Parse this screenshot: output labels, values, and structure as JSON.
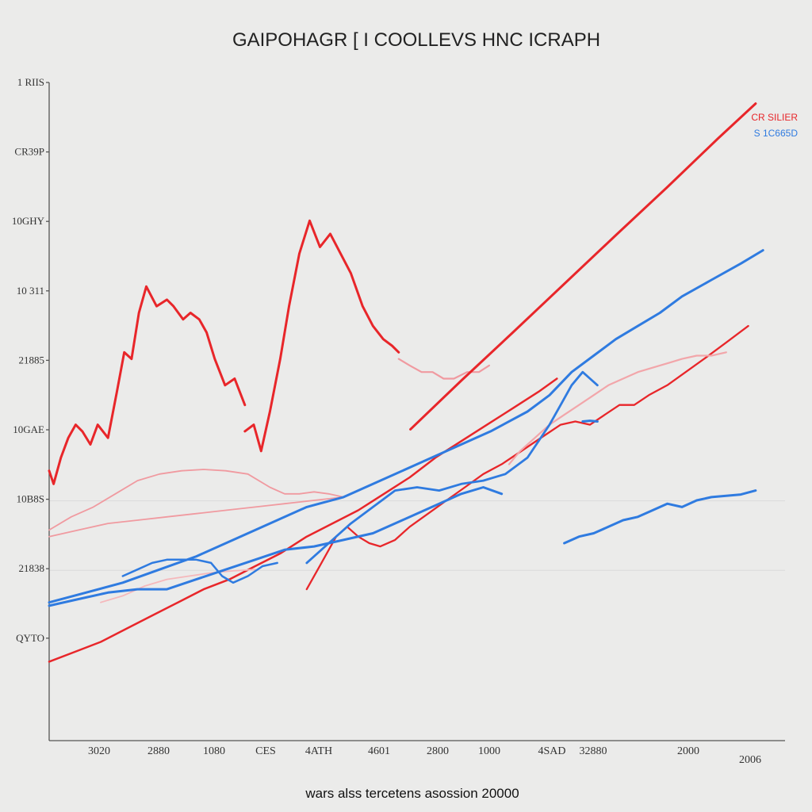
{
  "chart_data": {
    "type": "line",
    "title": "GAIPOHAGR  [ I COOLLEVS HNC  ICRAPH",
    "xlabel": "wars alss tercetens asossion 20000",
    "ylabel": "",
    "y_tick_labels": [
      "1 RIIS",
      "CR39P",
      "10GHY",
      "10 311",
      "21885",
      "10GAE",
      "10B8S",
      "21838",
      "QYTO"
    ],
    "x_tick_labels": [
      "3020",
      "2880",
      "1080",
      "CES",
      "4ATH",
      "4601",
      "2800",
      "1000",
      "4SAD",
      "32880",
      "2000",
      "2006"
    ],
    "xlim": [
      0,
      100
    ],
    "ylim": [
      0,
      100
    ],
    "grid": true,
    "legend_position": "top-right",
    "legend": [
      {
        "label": "CR SILIER",
        "color": "#e8262a"
      },
      {
        "label": "S 1C665D",
        "color": "#2f7be0"
      }
    ],
    "series": [
      {
        "color": "#e8262a",
        "width": 3,
        "opacity": 1,
        "x": [
          0,
          0.6,
          1.6,
          2.6,
          3.6,
          4.5,
          5.6,
          6.6,
          8.0,
          9.2,
          10.2,
          11.2,
          12.2,
          13.2,
          14.6,
          16.0,
          16.9,
          18.2,
          19.2,
          20.4,
          21.4,
          22.5,
          23.9,
          25.2,
          26.6
        ],
        "y": [
          41,
          39,
          43,
          46,
          48,
          47,
          45,
          48,
          46,
          53,
          59,
          58,
          65,
          69,
          66,
          67,
          66,
          64,
          65,
          64,
          62,
          58,
          54,
          55,
          51
        ]
      },
      {
        "color": "#e8262a",
        "width": 3,
        "opacity": 1,
        "x": [
          26.6,
          27.8,
          28.8,
          30.0,
          31.4,
          32.6,
          34.0,
          35.4,
          36.8,
          38.2,
          39.6,
          41.0,
          42.6,
          44.0,
          45.4,
          46.6,
          47.5
        ],
        "y": [
          47,
          48,
          44,
          50,
          58,
          66,
          74,
          79,
          75,
          77,
          74,
          71,
          66,
          63,
          61,
          60,
          59
        ]
      },
      {
        "color": "#f09aa0",
        "width": 2.2,
        "opacity": 1,
        "x": [
          47.5,
          49.0,
          50.6,
          52.1,
          53.6,
          55.0,
          56.8,
          58.4,
          59.8
        ],
        "y": [
          58,
          57,
          56,
          56,
          55,
          55,
          56,
          56,
          57
        ]
      },
      {
        "color": "#e8262a",
        "width": 3,
        "opacity": 1,
        "x": [
          49.1,
          56.0,
          63.0,
          70.0,
          77.0,
          84.0,
          90.9,
          96.0
        ],
        "y": [
          47.3,
          54.7,
          62.0,
          69.4,
          76.8,
          84.1,
          91.5,
          96.8
        ]
      },
      {
        "color": "#e8262a",
        "width": 2.5,
        "opacity": 1,
        "x": [
          0,
          3.5,
          7.0,
          10.5,
          14.0,
          17.5,
          21.0,
          24.5,
          28.0,
          31.5,
          35.0,
          38.5,
          42.0,
          45.5,
          49.0,
          52.5,
          56.0,
          59.5,
          63.0,
          66.5,
          69.0
        ],
        "y": [
          12,
          13.5,
          15,
          17,
          19,
          21,
          23,
          24.5,
          26.5,
          28.5,
          31,
          33,
          35,
          37.5,
          40,
          43,
          45.5,
          48,
          50.5,
          53,
          55
        ]
      },
      {
        "color": "#e8262a",
        "width": 2.3,
        "opacity": 1,
        "x": [
          35,
          37,
          39,
          40.5,
          42,
          43.5,
          45,
          47,
          49,
          51.5,
          54,
          56.5,
          59,
          61.5,
          63.5,
          65.5,
          67.5,
          69.5,
          71.5,
          73.5,
          75.5,
          77.5,
          79.5,
          81.5,
          84,
          86.5,
          89,
          92,
          95
        ],
        "y": [
          23,
          27,
          31,
          32.5,
          31,
          30,
          29.5,
          30.5,
          32.5,
          34.5,
          36.5,
          38.5,
          40.5,
          42,
          43.5,
          45,
          46.5,
          48,
          48.5,
          48,
          49.5,
          51,
          51,
          52.5,
          54,
          56,
          58,
          60.5,
          63
        ]
      },
      {
        "color": "#f2a6aa",
        "width": 2.2,
        "opacity": 1,
        "x": [
          62.5,
          64,
          66,
          68,
          70,
          72,
          74,
          76,
          78,
          80,
          81.5,
          83,
          84.5,
          86,
          88,
          90,
          92
        ],
        "y": [
          42,
          44,
          46,
          48,
          49.5,
          51,
          52.5,
          54,
          55,
          56,
          56.5,
          57,
          57.5,
          58,
          58.5,
          58.5,
          59
        ]
      },
      {
        "color": "#f09aa0",
        "width": 1.8,
        "opacity": 1,
        "x": [
          0,
          3,
          6,
          9,
          12,
          15,
          18,
          21,
          24,
          27,
          30,
          32,
          34,
          36,
          38,
          40
        ],
        "y": [
          32,
          34,
          35.5,
          37.5,
          39.5,
          40.5,
          41,
          41.2,
          41,
          40.5,
          38.5,
          37.5,
          37.5,
          37.8,
          37.5,
          37
        ]
      },
      {
        "color": "#f09aa0",
        "width": 1.8,
        "opacity": 1,
        "x": [
          0,
          4,
          8,
          12,
          16,
          20,
          24,
          28,
          32,
          36,
          40
        ],
        "y": [
          31,
          32,
          33,
          33.5,
          34,
          34.5,
          35,
          35.5,
          36,
          36.5,
          37
        ]
      },
      {
        "color": "#f5b8bb",
        "width": 1.8,
        "opacity": 1,
        "x": [
          7,
          10,
          13,
          16,
          19,
          22,
          25,
          28
        ],
        "y": [
          21,
          22,
          23.5,
          24.5,
          25,
          25.5,
          25.8,
          26
        ]
      },
      {
        "color": "#2f7be0",
        "width": 3,
        "opacity": 1,
        "x": [
          0,
          5,
          10,
          15,
          20,
          25,
          30,
          35,
          40,
          45,
          50,
          55,
          60,
          65,
          68,
          71,
          74,
          77,
          80,
          83,
          86,
          90,
          94,
          97
        ],
        "y": [
          21,
          22.5,
          24,
          26,
          28,
          30.5,
          33,
          35.5,
          37,
          39.5,
          42,
          44.5,
          47,
          50,
          52.5,
          56,
          58.5,
          61,
          63,
          65,
          67.5,
          70,
          72.5,
          74.5
        ]
      },
      {
        "color": "#2f7be0",
        "width": 3,
        "opacity": 1,
        "x": [
          0,
          4,
          8,
          12,
          16,
          20,
          24,
          28,
          32,
          36,
          40,
          44,
          48,
          52,
          56,
          59,
          61.5
        ],
        "y": [
          20.5,
          21.5,
          22.5,
          23,
          23,
          24.5,
          26,
          27.5,
          29,
          29.5,
          30.5,
          31.5,
          33.5,
          35.5,
          37.5,
          38.5,
          37.5
        ]
      },
      {
        "color": "#2f7be0",
        "width": 2.5,
        "opacity": 1,
        "x": [
          10,
          12,
          14,
          16,
          18,
          20,
          22,
          23.5,
          25,
          27,
          29,
          31
        ],
        "y": [
          25,
          26,
          27,
          27.5,
          27.5,
          27.5,
          27,
          25,
          24,
          25,
          26.5,
          27
        ]
      },
      {
        "color": "#2f7be0",
        "width": 2.8,
        "opacity": 1,
        "x": [
          35,
          38,
          41,
          44,
          47,
          50,
          53,
          56,
          59,
          62,
          65,
          68,
          69.5,
          71,
          72.5,
          73.5,
          74.5
        ],
        "y": [
          27,
          30,
          33,
          35.5,
          38,
          38.5,
          38,
          39,
          39.5,
          40.5,
          43,
          48,
          51,
          54,
          56,
          55,
          54
        ]
      },
      {
        "color": "#2f7be0",
        "width": 3,
        "opacity": 1,
        "x": [
          70,
          72,
          74,
          76,
          78,
          80,
          82,
          84,
          86,
          88,
          90,
          92,
          94,
          96
        ],
        "y": [
          30,
          31,
          31.5,
          32.5,
          33.5,
          34,
          35,
          36,
          35.5,
          36.5,
          37,
          37.2,
          37.4,
          38
        ]
      },
      {
        "color": "#2f7be0",
        "width": 3,
        "opacity": 1,
        "x": [
          72.5,
          73.5,
          74.5
        ],
        "y": [
          48.5,
          48.6,
          48.5
        ]
      }
    ]
  }
}
